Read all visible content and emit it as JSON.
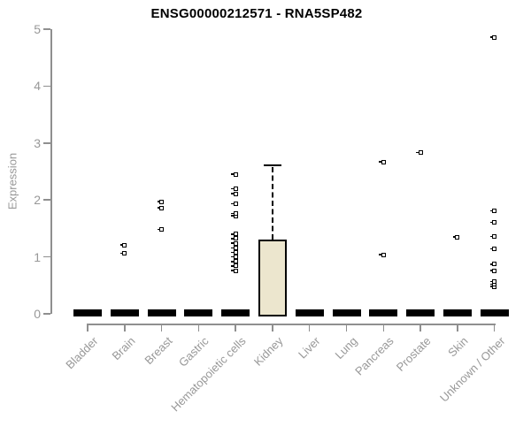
{
  "chart_data": {
    "type": "boxplot",
    "title": "ENSG00000212571 - RNA5SP482",
    "ylabel": "Expression",
    "xlabel": "",
    "ylim": [
      0,
      5
    ],
    "yticks": [
      0,
      1,
      2,
      3,
      4,
      5
    ],
    "grid": false,
    "legend": "none",
    "categories": [
      "Bladder",
      "Brain",
      "Breast",
      "Gastric",
      "Hematopoietic cells",
      "Kidney",
      "Liver",
      "Lung",
      "Pancreas",
      "Prostate",
      "Skin",
      "Unknown / Other"
    ],
    "boxes": [
      {
        "category": "Bladder",
        "median": 0,
        "q1": 0,
        "q3": 0,
        "whisker_low": 0,
        "whisker_high": 0,
        "outliers": []
      },
      {
        "category": "Brain",
        "median": 0,
        "q1": 0,
        "q3": 0,
        "whisker_low": 0,
        "whisker_high": 0,
        "outliers": [
          1.06,
          1.21
        ]
      },
      {
        "category": "Breast",
        "median": 0,
        "q1": 0,
        "q3": 0,
        "whisker_low": 0,
        "whisker_high": 0,
        "outliers": [
          1.48,
          1.86,
          1.97
        ]
      },
      {
        "category": "Gastric",
        "median": 0,
        "q1": 0,
        "q3": 0,
        "whisker_low": 0,
        "whisker_high": 0,
        "outliers": []
      },
      {
        "category": "Hematopoietic cells",
        "median": 0,
        "q1": 0,
        "q3": 0,
        "whisker_low": 0,
        "whisker_high": 0,
        "outliers": [
          0.76,
          0.84,
          0.92,
          1.0,
          1.08,
          1.16,
          1.24,
          1.32,
          1.4,
          1.72,
          1.76,
          1.93,
          2.11,
          2.2,
          2.45
        ]
      },
      {
        "category": "Kidney",
        "median": 0,
        "q1": 0,
        "q3": 1.3,
        "whisker_low": 0,
        "whisker_high": 2.61,
        "outliers": []
      },
      {
        "category": "Liver",
        "median": 0,
        "q1": 0,
        "q3": 0,
        "whisker_low": 0,
        "whisker_high": 0,
        "outliers": []
      },
      {
        "category": "Lung",
        "median": 0,
        "q1": 0,
        "q3": 0,
        "whisker_low": 0,
        "whisker_high": 0,
        "outliers": []
      },
      {
        "category": "Pancreas",
        "median": 0,
        "q1": 0,
        "q3": 0,
        "whisker_low": 0,
        "whisker_high": 0,
        "outliers": [
          1.04,
          2.67
        ]
      },
      {
        "category": "Prostate",
        "median": 0,
        "q1": 0,
        "q3": 0,
        "whisker_low": 0,
        "whisker_high": 0,
        "outliers": [
          2.83
        ]
      },
      {
        "category": "Skin",
        "median": 0,
        "q1": 0,
        "q3": 0,
        "whisker_low": 0,
        "whisker_high": 0,
        "outliers": [
          1.35
        ]
      },
      {
        "category": "Unknown / Other",
        "median": 0,
        "q1": 0,
        "q3": 0,
        "whisker_low": 0,
        "whisker_high": 0,
        "outliers": [
          0.48,
          0.52,
          0.57,
          0.76,
          0.87,
          1.14,
          1.36,
          1.61,
          1.81,
          4.86
        ]
      }
    ],
    "colors": {
      "box_fill": "#ECE6CE",
      "box_border": "#000000",
      "outlier_border": "#000000",
      "axis": "#8F8F8F",
      "tick_label": "#989898",
      "title": "#000000"
    }
  }
}
